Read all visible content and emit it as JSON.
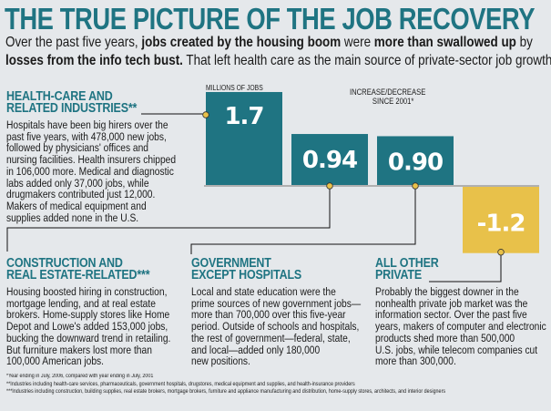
{
  "title": "THE TRUE PICTURE OF THE JOB RECOVERY",
  "subtitle": {
    "line1": [
      {
        "text": "Over the past five years, ",
        "bold": false
      },
      {
        "text": "jobs created by the housing boom",
        "bold": true
      },
      {
        "text": " were ",
        "bold": false
      },
      {
        "text": "more than swallowed up",
        "bold": true
      },
      {
        "text": " by",
        "bold": false
      }
    ],
    "line2": [
      {
        "text": "losses from the info tech bust.",
        "bold": true
      },
      {
        "text": " That left health care as the main source of private-sector job growth.",
        "bold": false
      }
    ]
  },
  "chart_data": {
    "type": "bar",
    "title": "",
    "unit_label": "MILLIONS OF JOBS",
    "ylabel": "INCREASE/DECREASE SINCE 2001*",
    "categories": [
      "HEALTH-CARE AND RELATED INDUSTRIES**",
      "CONSTRUCTION AND REAL ESTATE-RELATED***",
      "GOVERNMENT EXCEPT HOSPITALS",
      "ALL OTHER PRIVATE"
    ],
    "values": [
      1.7,
      0.94,
      0.9,
      -1.2
    ],
    "value_labels": [
      "1.7",
      "0.94",
      "0.90",
      "-1.2"
    ],
    "colors": [
      "#1f7482",
      "#1f7482",
      "#1f7482",
      "#e8c14a"
    ],
    "baseline_color": "#b0b0b0",
    "grid": false
  },
  "labels": {
    "unit": "MILLIONS OF JOBS",
    "axis_line1": "INCREASE/DECREASE",
    "axis_line2": "SINCE 2001*"
  },
  "sections": [
    {
      "heading": [
        "HEALTH-CARE AND",
        "RELATED INDUSTRIES**"
      ],
      "lines": [
        "Hospitals have been big hirers over the",
        "past five years, with 478,000 new jobs,",
        "followed by physicians' offices and",
        "nursing facilities. Health insurers chipped",
        "in 106,000 more. Medical and diagnostic",
        "labs added only 37,000 jobs, while",
        "drugmakers contributed just 12,000.",
        "Makers of medical equipment and",
        "supplies added none in the U.S."
      ]
    },
    {
      "heading": [
        "CONSTRUCTION AND",
        "REAL ESTATE-RELATED***"
      ],
      "lines": [
        "Housing boosted hiring in construction,",
        "mortgage lending, and at real estate",
        "brokers. Home-supply stores like Home",
        "Depot and Lowe's added 153,000 jobs,",
        "bucking the downward trend in retailing.",
        "But furniture makers lost more than",
        "100,000 American jobs."
      ]
    },
    {
      "heading": [
        "GOVERNMENT",
        "EXCEPT HOSPITALS"
      ],
      "lines": [
        "Local and state education were the",
        "prime sources of new government jobs—",
        "more than 700,000 over this five-year",
        "period. Outside of schools and hospitals,",
        "the rest of government—federal, state,",
        "and local—added only 180,000",
        "new positions."
      ]
    },
    {
      "heading": [
        "ALL OTHER",
        "PRIVATE"
      ],
      "lines": [
        "Probably the biggest downer in the",
        "nonhealth private job market was the",
        "information sector. Over the past five",
        "years, makers of computer and electronic",
        "products shed more than 500,000",
        "U.S. jobs, while telecom companies cut",
        "more than 300,000."
      ]
    }
  ],
  "footnotes": [
    "*Year ending in July, 2006, compared with year ending in July, 2001",
    "**Industries including health-care services, pharmaceuticals, government hospitals, drugstores, medical equipment and supplies, and health-insurance providers",
    "***Industries including construction, building supplies, real estate brokers, mortgage brokers, furniture and appliance manufacturing and distribution, home-supply stores, architects, and interior designers"
  ],
  "colors": {
    "accent": "#1f7482",
    "negative": "#e8c14a",
    "dot": "#e8c14a",
    "background": "#e5e8eb"
  }
}
